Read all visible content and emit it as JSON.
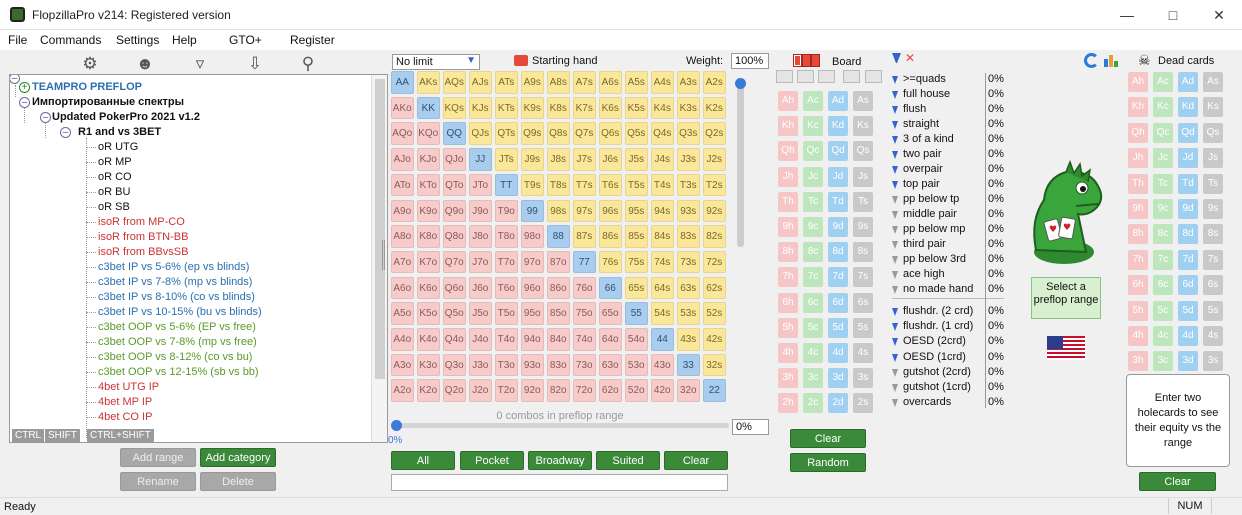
{
  "title": "FlopzillaPro v214: Registered version",
  "menu": [
    "File",
    "Commands",
    "Settings",
    "Help",
    "GTO+",
    "Register"
  ],
  "tree": {
    "root1": "TEAMPRO PREFLOP",
    "root2": "Импортированные спектры",
    "child": "Updated PokerPro 2021 v1.2",
    "group": "R1 and vs 3BET",
    "items": [
      {
        "label": "oR UTG",
        "color": "#111"
      },
      {
        "label": "oR MP",
        "color": "#111"
      },
      {
        "label": "oR CO",
        "color": "#111"
      },
      {
        "label": "oR BU",
        "color": "#111"
      },
      {
        "label": "oR SB",
        "color": "#111"
      },
      {
        "label": "isoR from MP-CO",
        "color": "#cc3333"
      },
      {
        "label": "isoR from BTN-BB",
        "color": "#cc3333"
      },
      {
        "label": "isoR from BBvsSB",
        "color": "#cc3333"
      },
      {
        "label": "c3bet IP vs 5-6% (ep vs blinds)",
        "color": "#2a6fb0"
      },
      {
        "label": "c3bet IP vs 7-8% (mp vs blinds)",
        "color": "#2a6fb0"
      },
      {
        "label": "c3bet IP vs 8-10% (co vs blinds)",
        "color": "#2a6fb0"
      },
      {
        "label": "c3bet IP vs 10-15% (bu vs blinds)",
        "color": "#2a6fb0"
      },
      {
        "label": "c3bet OOP vs 5-6% (EP vs free)",
        "color": "#5a9a2a"
      },
      {
        "label": "c3bet OOP vs 7-8% (mp vs free)",
        "color": "#5a9a2a"
      },
      {
        "label": "c3bet OOP vs 8-12% (co vs bu)",
        "color": "#5a9a2a"
      },
      {
        "label": "c3bet OOP vs 12-15% (sb vs bb)",
        "color": "#5a9a2a"
      },
      {
        "label": "4bet UTG IP",
        "color": "#cc3333"
      },
      {
        "label": "4bet MP IP",
        "color": "#cc3333"
      },
      {
        "label": "4bet CO IP",
        "color": "#cc3333"
      }
    ]
  },
  "modkeys": [
    "CTRL",
    "SHIFT",
    "CTRL+SHIFT"
  ],
  "tree_buttons": {
    "add_range": "Add range",
    "add_category": "Add category",
    "rename": "Rename",
    "delete": "Delete"
  },
  "range": {
    "limit": "No limit",
    "starting_hand": "Starting hand",
    "weight_label": "Weight:",
    "weight": "100%",
    "combos": "0 combos in preflop range",
    "progress": "0%",
    "slider_value": "0%",
    "slider_fraction": 0
  },
  "range_buttons": {
    "all": "All",
    "pocket": "Pocket",
    "broadway": "Broadway",
    "suited": "Suited",
    "clear": "Clear"
  },
  "ranks": [
    "A",
    "K",
    "Q",
    "J",
    "T",
    "9",
    "8",
    "7",
    "6",
    "5",
    "4",
    "3",
    "2"
  ],
  "board": {
    "label": "Board",
    "clear": "Clear",
    "random": "Random"
  },
  "board_ranks": [
    "A",
    "K",
    "Q",
    "J",
    "T",
    "9",
    "8",
    "7",
    "6",
    "5",
    "4",
    "3",
    "2"
  ],
  "suits": [
    "h",
    "c",
    "d",
    "s"
  ],
  "hands": [
    {
      "label": ">=quads",
      "pct": "0%",
      "filter": "on"
    },
    {
      "label": "full house",
      "pct": "0%",
      "filter": "on"
    },
    {
      "label": "flush",
      "pct": "0%",
      "filter": "on"
    },
    {
      "label": "straight",
      "pct": "0%",
      "filter": "on"
    },
    {
      "label": "3 of a kind",
      "pct": "0%",
      "filter": "on"
    },
    {
      "label": "two pair",
      "pct": "0%",
      "filter": "on"
    },
    {
      "label": "overpair",
      "pct": "0%",
      "filter": "on"
    },
    {
      "label": "top pair",
      "pct": "0%",
      "filter": "on"
    },
    {
      "label": "pp below tp",
      "pct": "0%",
      "filter": "off"
    },
    {
      "label": "middle pair",
      "pct": "0%",
      "filter": "off"
    },
    {
      "label": "pp below mp",
      "pct": "0%",
      "filter": "off"
    },
    {
      "label": "third pair",
      "pct": "0%",
      "filter": "off"
    },
    {
      "label": "pp below 3rd",
      "pct": "0%",
      "filter": "off"
    },
    {
      "label": "ace high",
      "pct": "0%",
      "filter": "off"
    },
    {
      "label": "no made hand",
      "pct": "0%",
      "filter": "off"
    }
  ],
  "draws": [
    {
      "label": "flushdr. (2 crd)",
      "pct": "0%",
      "filter": "on"
    },
    {
      "label": "flushdr. (1 crd)",
      "pct": "0%",
      "filter": "on"
    },
    {
      "label": "OESD (2crd)",
      "pct": "0%",
      "filter": "on"
    },
    {
      "label": "OESD (1crd)",
      "pct": "0%",
      "filter": "on"
    },
    {
      "label": "gutshot (2crd)",
      "pct": "0%",
      "filter": "off"
    },
    {
      "label": "gutshot (1crd)",
      "pct": "0%",
      "filter": "off"
    },
    {
      "label": "overcards",
      "pct": "0%",
      "filter": "off"
    }
  ],
  "select_range": "Select a preflop range",
  "dead": {
    "label": "Dead cards",
    "hint": "Enter two holecards to see their equity vs the range",
    "clear": "Clear"
  },
  "status": {
    "left": "Ready",
    "right": "NUM"
  }
}
